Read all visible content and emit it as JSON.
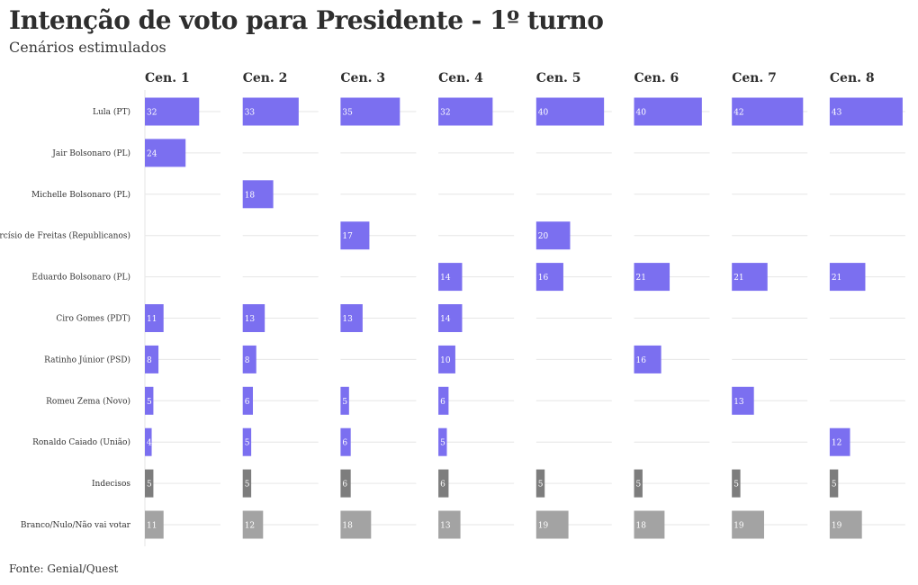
{
  "header": {
    "title": "Intenção de voto para Presidente - 1º turno",
    "subtitle": "Cenários estimulados"
  },
  "footer": {
    "source": "Fonte: Genial/Quest"
  },
  "colors": {
    "candidate": "#7b6ff0",
    "indecisos": "#7d7d7d",
    "branco": "#a3a3a3",
    "grid": "#e6e6e6"
  },
  "chart_data": {
    "type": "bar",
    "title": "Intenção de voto para Presidente - 1º turno",
    "subtitle": "Cenários estimulados",
    "scenarios": [
      "Cen. 1",
      "Cen. 2",
      "Cen. 3",
      "Cen. 4",
      "Cen. 5",
      "Cen. 6",
      "Cen. 7",
      "Cen. 8"
    ],
    "categories": [
      "Lula (PT)",
      "Jair Bolsonaro (PL)",
      "Michelle Bolsonaro (PL)",
      "Tarcísio de Freitas (Republicanos)",
      "Eduardo Bolsonaro (PL)",
      "Ciro Gomes (PDT)",
      "Ratinho Júnior (PSD)",
      "Romeu Zema (Novo)",
      "Ronaldo Caiado (União)",
      "Indecisos",
      "Branco/Nulo/Não vai votar"
    ],
    "values": [
      [
        32,
        33,
        35,
        32,
        40,
        40,
        42,
        43
      ],
      [
        24,
        null,
        null,
        null,
        null,
        null,
        null,
        null
      ],
      [
        null,
        18,
        null,
        null,
        null,
        null,
        null,
        null
      ],
      [
        null,
        null,
        17,
        null,
        20,
        null,
        null,
        null
      ],
      [
        null,
        null,
        null,
        14,
        16,
        21,
        21,
        21
      ],
      [
        11,
        13,
        13,
        14,
        null,
        null,
        null,
        null
      ],
      [
        8,
        8,
        null,
        10,
        null,
        16,
        null,
        null
      ],
      [
        5,
        6,
        5,
        6,
        null,
        null,
        13,
        null
      ],
      [
        4,
        5,
        6,
        5,
        null,
        null,
        null,
        12
      ],
      [
        5,
        5,
        6,
        6,
        5,
        5,
        5,
        5
      ],
      [
        11,
        12,
        18,
        13,
        19,
        18,
        19,
        19
      ]
    ],
    "xlim": [
      0,
      43
    ],
    "grid": true
  }
}
